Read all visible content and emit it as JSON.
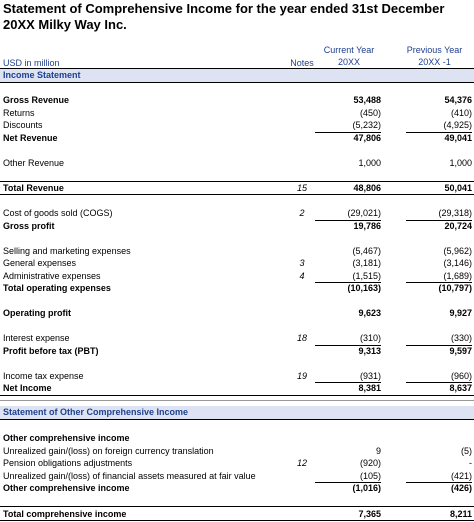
{
  "title": "Statement of Comprehensive Income for the year ended 31st December 20XX Milky Way Inc.",
  "header": {
    "unit": "USD in million",
    "notes": "Notes",
    "current_year_l1": "Current Year",
    "current_year_l2": "20XX",
    "previous_year_l1": "Previous Year",
    "previous_year_l2": "20XX -1"
  },
  "sections": {
    "income_statement": "Income Statement",
    "other_comprehensive": "Statement of Other Comprehensive Income"
  },
  "rows": [
    {
      "label": "Gross Revenue",
      "note": "",
      "current": "53,488",
      "previous": "54,376",
      "bold": true
    },
    {
      "label": "Returns",
      "note": "",
      "current": "(450)",
      "previous": "(410)",
      "bold": false
    },
    {
      "label": "Discounts",
      "note": "",
      "current": "(5,232)",
      "previous": "(4,925)",
      "bold": false
    },
    {
      "label": "Net Revenue",
      "note": "",
      "current": "47,806",
      "previous": "49,041",
      "bold": true
    },
    {
      "label": "Other Revenue",
      "note": "",
      "current": "1,000",
      "previous": "1,000",
      "bold": false
    },
    {
      "label": "Total Revenue",
      "note": "15",
      "current": "48,806",
      "previous": "50,041",
      "bold": true
    },
    {
      "label": "Cost of goods sold (COGS)",
      "note": "2",
      "current": "(29,021)",
      "previous": "(29,318)",
      "bold": false
    },
    {
      "label": "Gross profit",
      "note": "",
      "current": "19,786",
      "previous": "20,724",
      "bold": true
    },
    {
      "label": "Selling and marketing expenses",
      "note": "",
      "current": "(5,467)",
      "previous": "(5,962)",
      "bold": false
    },
    {
      "label": "General expenses",
      "note": "3",
      "current": "(3,181)",
      "previous": "(3,146)",
      "bold": false
    },
    {
      "label": "Administrative expenses",
      "note": "4",
      "current": "(1,515)",
      "previous": "(1,689)",
      "bold": false
    },
    {
      "label": "Total operating expenses",
      "note": "",
      "current": "(10,163)",
      "previous": "(10,797)",
      "bold": true
    },
    {
      "label": "Operating profit",
      "note": "",
      "current": "9,623",
      "previous": "9,927",
      "bold": true
    },
    {
      "label": "Interest expense",
      "note": "18",
      "current": "(310)",
      "previous": "(330)",
      "bold": false
    },
    {
      "label": "Profit before tax (PBT)",
      "note": "",
      "current": "9,313",
      "previous": "9,597",
      "bold": true
    },
    {
      "label": "Income tax expense",
      "note": "19",
      "current": "(931)",
      "previous": "(960)",
      "bold": false
    },
    {
      "label": "Net Income",
      "note": "",
      "current": "8,381",
      "previous": "8,637",
      "bold": true
    },
    {
      "label": "Other comprehensive income",
      "note": "",
      "current": "",
      "previous": "",
      "bold": true
    },
    {
      "label": "Unrealized gain/(loss) on foreign currency translation",
      "note": "",
      "current": "9",
      "previous": "(5)",
      "bold": false
    },
    {
      "label": "Pension obligations adjustments",
      "note": "12",
      "current": "(920)",
      "previous": "-",
      "bold": false
    },
    {
      "label": "Unrealized gain/(loss) of financial assets measured at fair value",
      "note": "",
      "current": "(105)",
      "previous": "(421)",
      "bold": false
    },
    {
      "label": "Other comprehensive income",
      "note": "",
      "current": "(1,016)",
      "previous": "(426)",
      "bold": true
    },
    {
      "label": "Total comprehensive income",
      "note": "",
      "current": "7,365",
      "previous": "8,211",
      "bold": true
    }
  ]
}
